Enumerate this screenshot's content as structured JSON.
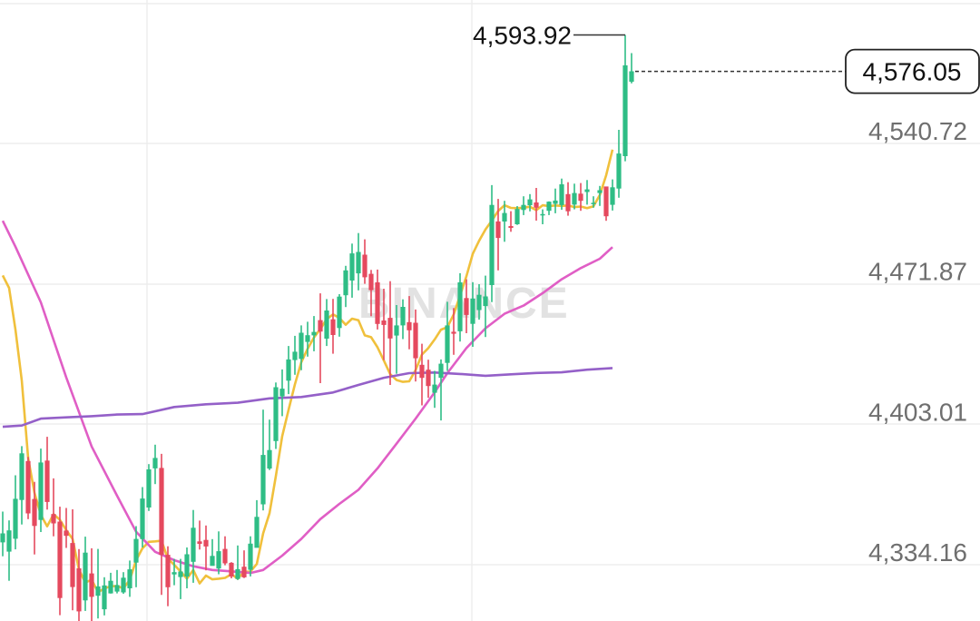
{
  "chart_data": {
    "type": "candlestick",
    "watermark": "BINANCE",
    "y_axis": {
      "ticks": [
        {
          "label": "4,540.72",
          "value": 4540.72
        },
        {
          "label": "4,471.87",
          "value": 4471.87
        },
        {
          "label": "4,403.01",
          "value": 4403.01
        },
        {
          "label": "4,334.16",
          "value": 4334.16
        }
      ]
    },
    "current_price": {
      "label": "4,576.05",
      "value": 4576.05
    },
    "high_marker": {
      "label": "4,593.92",
      "value": 4593.92
    },
    "candles": [
      [
        4345.1,
        4360.2,
        4338.3,
        4349.5
      ],
      [
        4340.6,
        4355.9,
        4326.3,
        4351.0
      ],
      [
        4346.9,
        4378.0,
        4341.7,
        4366.5
      ],
      [
        4365.9,
        4392.3,
        4353.9,
        4388.8
      ],
      [
        4385.0,
        4387.0,
        4356.5,
        4359.3
      ],
      [
        4366.4,
        4374.8,
        4339.2,
        4353.2
      ],
      [
        4356.1,
        4391.1,
        4350.2,
        4384.3
      ],
      [
        4385.2,
        4396.9,
        4361.2,
        4364.9
      ],
      [
        4359.0,
        4376.5,
        4348.1,
        4354.4
      ],
      [
        4355.3,
        4362.6,
        4309.4,
        4317.8
      ],
      [
        4350.9,
        4362.0,
        4342.4,
        4348.3
      ],
      [
        4344.8,
        4361.3,
        4311.8,
        4323.2
      ],
      [
        4332.4,
        4341.8,
        4303.0,
        4311.3
      ],
      [
        4316.7,
        4347.9,
        4311.5,
        4340.1
      ],
      [
        4329.9,
        4342.2,
        4306.4,
        4318.4
      ],
      [
        4318.9,
        4341.9,
        4307.8,
        4323.5
      ],
      [
        4312.3,
        4328.0,
        4309.3,
        4324.0
      ],
      [
        4320.1,
        4330.2,
        4320.0,
        4326.3
      ],
      [
        4321.0,
        4331.6,
        4320.1,
        4324.2
      ],
      [
        4320.6,
        4330.5,
        4319.9,
        4327.8
      ],
      [
        4322.6,
        4336.2,
        4318.4,
        4331.9
      ],
      [
        4335.2,
        4353.1,
        4323.1,
        4346.8
      ],
      [
        4346.7,
        4372.2,
        4342.6,
        4366.6
      ],
      [
        4362.2,
        4383.5,
        4360.5,
        4380.9
      ],
      [
        4381.4,
        4393.0,
        4373.7,
        4386.5
      ],
      [
        4381.6,
        4388.5,
        4319.4,
        4339.0
      ],
      [
        4339.0,
        4343.2,
        4313.8,
        4323.1
      ],
      [
        4329.4,
        4337.0,
        4324.1,
        4330.5
      ],
      [
        4328.1,
        4337.0,
        4317.3,
        4330.8
      ],
      [
        4328.4,
        4342.6,
        4322.6,
        4339.3
      ],
      [
        4335.6,
        4361.0,
        4325.3,
        4352.3
      ],
      [
        4345.6,
        4355.8,
        4341.6,
        4344.4
      ],
      [
        4346.3,
        4353.4,
        4331.4,
        4343.1
      ],
      [
        4333.6,
        4346.7,
        4334.3,
        4338.5
      ],
      [
        4332.3,
        4350.5,
        4329.5,
        4340.8
      ],
      [
        4341.9,
        4348.1,
        4333.9,
        4334.8
      ],
      [
        4335.1,
        4335.4,
        4327.5,
        4328.4
      ],
      [
        4327.2,
        4343.6,
        4326.7,
        4332.0
      ],
      [
        4333.2,
        4341.2,
        4327.6,
        4328.0
      ],
      [
        4331.7,
        4348.1,
        4328.4,
        4344.5
      ],
      [
        4342.4,
        4365.8,
        4342.9,
        4357.6
      ],
      [
        4363.8,
        4410.2,
        4360.8,
        4388.0
      ],
      [
        4381.3,
        4405.3,
        4380.6,
        4390.4
      ],
      [
        4394.8,
        4423.5,
        4390.9,
        4421.2
      ],
      [
        4416.7,
        4429.9,
        4407.0,
        4420.5
      ],
      [
        4424.4,
        4441.4,
        4417.8,
        4434.8
      ],
      [
        4434.5,
        4446.4,
        4427.3,
        4438.6
      ],
      [
        4435.1,
        4451.5,
        4429.5,
        4447.9
      ],
      [
        4443.4,
        4453.3,
        4436.2,
        4446.7
      ],
      [
        4446.6,
        4456.1,
        4438.8,
        4448.3
      ],
      [
        4454.1,
        4467.2,
        4423.2,
        4448.5
      ],
      [
        4445.0,
        4464.4,
        4441.4,
        4458.8
      ],
      [
        4454.5,
        4464.5,
        4437.6,
        4446.8
      ],
      [
        4450.2,
        4466.8,
        4446.0,
        4465.6
      ],
      [
        4466.3,
        4480.7,
        4460.5,
        4478.5
      ],
      [
        4473.5,
        4491.6,
        4465.1,
        4486.8
      ],
      [
        4477.0,
        4496.8,
        4468.7,
        4487.5
      ],
      [
        4486.2,
        4493.7,
        4471.9,
        4475.1
      ],
      [
        4476.8,
        4478.7,
        4456.0,
        4468.8
      ],
      [
        4472.6,
        4478.9,
        4449.5,
        4452.2
      ],
      [
        4453.9,
        4469.5,
        4434.5,
        4451.7
      ],
      [
        4455.2,
        4473.2,
        4422.3,
        4445.1
      ],
      [
        4446.5,
        4461.5,
        4427.8,
        4451.5
      ],
      [
        4451.5,
        4464.3,
        4444.8,
        4460.6
      ],
      [
        4453.1,
        4465.9,
        4439.8,
        4449.1
      ],
      [
        4452.8,
        4459.3,
        4424.0,
        4435.4
      ],
      [
        4432.2,
        4442.5,
        4412.3,
        4425.8
      ],
      [
        4429.8,
        4434.7,
        4416.0,
        4421.8
      ],
      [
        4418.5,
        4429.2,
        4411.1,
        4422.5
      ],
      [
        4425.8,
        4434.8,
        4404.9,
        4432.7
      ],
      [
        4433.1,
        4463.1,
        4429.2,
        4451.5
      ],
      [
        4448.4,
        4460.0,
        4437.1,
        4447.4
      ],
      [
        4448.6,
        4477.1,
        4443.6,
        4472.6
      ],
      [
        4464.9,
        4474.1,
        4447.7,
        4456.6
      ],
      [
        4452.3,
        4472.7,
        4441.0,
        4464.7
      ],
      [
        4459.0,
        4471.7,
        4454.3,
        4466.5
      ],
      [
        4461.0,
        4475.9,
        4445.8,
        4465.7
      ],
      [
        4471.3,
        4520.3,
        4462.9,
        4510.6
      ],
      [
        4502.5,
        4513.5,
        4478.5,
        4494.4
      ],
      [
        4502.4,
        4512.6,
        4492.5,
        4506.6
      ],
      [
        4500.2,
        4507.5,
        4497.4,
        4499.3
      ],
      [
        4501.1,
        4510.0,
        4500.8,
        4508.6
      ],
      [
        4508.1,
        4514.8,
        4505.6,
        4510.6
      ],
      [
        4510.4,
        4515.9,
        4507.4,
        4513.3
      ],
      [
        4511.8,
        4518.9,
        4502.9,
        4509.2
      ],
      [
        4505.9,
        4508.4,
        4501.1,
        4506.1
      ],
      [
        4507.7,
        4512.3,
        4505.6,
        4512.2
      ],
      [
        4511.1,
        4518.6,
        4506.5,
        4512.7
      ],
      [
        4510.5,
        4523.5,
        4508.2,
        4520.7
      ],
      [
        4515.9,
        4521.7,
        4505.3,
        4507.5
      ],
      [
        4510.7,
        4521.0,
        4508.4,
        4516.4
      ],
      [
        4516.1,
        4521.3,
        4507.7,
        4512.6
      ],
      [
        4516.9,
        4522.8,
        4510.7,
        4518.2
      ],
      [
        4511.6,
        4514.8,
        4509.2,
        4511.6
      ],
      [
        4516.4,
        4519.9,
        4510.1,
        4517.8
      ],
      [
        4519.6,
        4518.7,
        4502.8,
        4505.0
      ],
      [
        4510.6,
        4523.1,
        4507.8,
        4519.2
      ],
      [
        4518.6,
        4547.4,
        4514.1,
        4535.8
      ],
      [
        4534.5,
        4593.9,
        4532.0,
        4579.0
      ],
      [
        4571.0,
        4585.0,
        4570.2,
        4576.1
      ]
    ],
    "moving_averages": [
      {
        "color": "#f0c03c",
        "values": [
          [
            0,
            4476.0
          ],
          [
            1,
            4469.9
          ],
          [
            2,
            4449.5
          ],
          [
            3,
            4424.5
          ],
          [
            4,
            4386.5
          ],
          [
            5,
            4369.4
          ],
          [
            6,
            4358.6
          ],
          [
            7,
            4353.0
          ],
          [
            8,
            4358.9
          ],
          [
            9,
            4356.2
          ],
          [
            10,
            4351.1
          ],
          [
            11,
            4346.8
          ],
          [
            12,
            4331.8
          ],
          [
            13,
            4325.4
          ],
          [
            14,
            4326.8
          ],
          [
            15,
            4320.7
          ],
          [
            16,
            4322.5
          ],
          [
            17,
            4323.6
          ],
          [
            18,
            4323.7
          ],
          [
            19,
            4322.6
          ],
          [
            20,
            4326.7
          ],
          [
            21,
            4336.4
          ],
          [
            22,
            4342.2
          ],
          [
            23,
            4345.4
          ],
          [
            24,
            4345.6
          ],
          [
            25,
            4345.9
          ],
          [
            26,
            4337.1
          ],
          [
            27,
            4334.1
          ],
          [
            28,
            4330.8
          ],
          [
            29,
            4327.3
          ],
          [
            30,
            4331.6
          ],
          [
            31,
            4325.0
          ],
          [
            32,
            4328.8
          ],
          [
            33,
            4327.0
          ],
          [
            34,
            4327.3
          ],
          [
            35,
            4327.7
          ],
          [
            36,
            4329.5
          ],
          [
            37,
            4327.3
          ],
          [
            38,
            4330.7
          ],
          [
            39,
            4330.8
          ],
          [
            40,
            4334.5
          ],
          [
            41,
            4349.5
          ],
          [
            42,
            4359.4
          ],
          [
            43,
            4377.6
          ],
          [
            44,
            4397.2
          ],
          [
            45,
            4410.1
          ],
          [
            46,
            4422.6
          ],
          [
            47,
            4433.4
          ],
          [
            48,
            4440.0
          ],
          [
            49,
            4445.6
          ],
          [
            50,
            4449.7
          ],
          [
            51,
            4454.6
          ],
          [
            52,
            4456.9
          ],
          [
            53,
            4455.2
          ],
          [
            54,
            4451.8
          ],
          [
            55,
            4454.8
          ],
          [
            56,
            4454.0
          ],
          [
            57,
            4446.6
          ],
          [
            58,
            4445.7
          ],
          [
            59,
            4440.8
          ],
          [
            60,
            4434.3
          ],
          [
            61,
            4427.6
          ],
          [
            62,
            4424.7
          ],
          [
            63,
            4423.8
          ],
          [
            64,
            4424.1
          ],
          [
            65,
            4429.6
          ],
          [
            66,
            4437.2
          ],
          [
            67,
            4440.4
          ],
          [
            68,
            4444.6
          ],
          [
            69,
            4449.4
          ],
          [
            70,
            4450.6
          ],
          [
            71,
            4456.9
          ],
          [
            72,
            4466.2
          ],
          [
            73,
            4475.6
          ],
          [
            74,
            4486.6
          ],
          [
            75,
            4493.0
          ],
          [
            76,
            4498.5
          ],
          [
            77,
            4502.9
          ],
          [
            78,
            4507.6
          ],
          [
            79,
            4510.4
          ],
          [
            80,
            4509.1
          ],
          [
            81,
            4509.0
          ],
          [
            82,
            4509.2
          ],
          [
            83,
            4509.7
          ],
          [
            84,
            4508.0
          ],
          [
            85,
            4510.4
          ],
          [
            86,
            4510.0
          ],
          [
            87,
            4510.3
          ],
          [
            88,
            4510.1
          ],
          [
            89,
            4510.3
          ],
          [
            90,
            4509.5
          ],
          [
            91,
            4509.8
          ],
          [
            92,
            4509.0
          ],
          [
            93,
            4509.9
          ],
          [
            94,
            4515.4
          ],
          [
            95,
            4525.1
          ],
          [
            96,
            4537.7
          ]
        ]
      },
      {
        "color": "#e05ec5",
        "values": [
          [
            0,
            4502.8
          ],
          [
            2,
            4490.1
          ],
          [
            6,
            4462.8
          ],
          [
            10,
            4426.0
          ],
          [
            14,
            4392.1
          ],
          [
            18,
            4368.0
          ],
          [
            21,
            4350.3
          ],
          [
            24,
            4340.5
          ],
          [
            27,
            4336.4
          ],
          [
            30,
            4333.4
          ],
          [
            33,
            4331.6
          ],
          [
            36,
            4330.9
          ],
          [
            39,
            4330.1
          ],
          [
            41,
            4331.6
          ],
          [
            44,
            4338.6
          ],
          [
            47,
            4346.8
          ],
          [
            50,
            4356.5
          ],
          [
            53,
            4364.0
          ],
          [
            56,
            4370.9
          ],
          [
            59,
            4381.4
          ],
          [
            62,
            4393.5
          ],
          [
            65,
            4405.8
          ],
          [
            68,
            4418.7
          ],
          [
            70,
            4428.1
          ],
          [
            73,
            4440.4
          ],
          [
            76,
            4450.1
          ],
          [
            79,
            4457.2
          ],
          [
            82,
            4461.2
          ],
          [
            85,
            4467.3
          ],
          [
            88,
            4474.1
          ],
          [
            91,
            4479.6
          ],
          [
            94,
            4484.2
          ],
          [
            96,
            4489.9
          ]
        ]
      },
      {
        "color": "#9460c8",
        "values": [
          [
            0,
            4401.8
          ],
          [
            3,
            4402.4
          ],
          [
            6,
            4405.8
          ],
          [
            10,
            4406.4
          ],
          [
            14,
            4407.0
          ],
          [
            18,
            4407.8
          ],
          [
            22,
            4408.0
          ],
          [
            27,
            4411.5
          ],
          [
            32,
            4412.8
          ],
          [
            37,
            4413.6
          ],
          [
            42,
            4415.7
          ],
          [
            47,
            4416.4
          ],
          [
            52,
            4418.6
          ],
          [
            56,
            4422.3
          ],
          [
            60,
            4425.8
          ],
          [
            64,
            4428.1
          ],
          [
            68,
            4428.4
          ],
          [
            72,
            4427.7
          ],
          [
            76,
            4426.8
          ],
          [
            80,
            4427.5
          ],
          [
            84,
            4428.2
          ],
          [
            88,
            4428.5
          ],
          [
            92,
            4429.8
          ],
          [
            96,
            4430.6
          ]
        ]
      }
    ],
    "colors": {
      "up": "#2ebd85",
      "down": "#e5495e"
    }
  }
}
